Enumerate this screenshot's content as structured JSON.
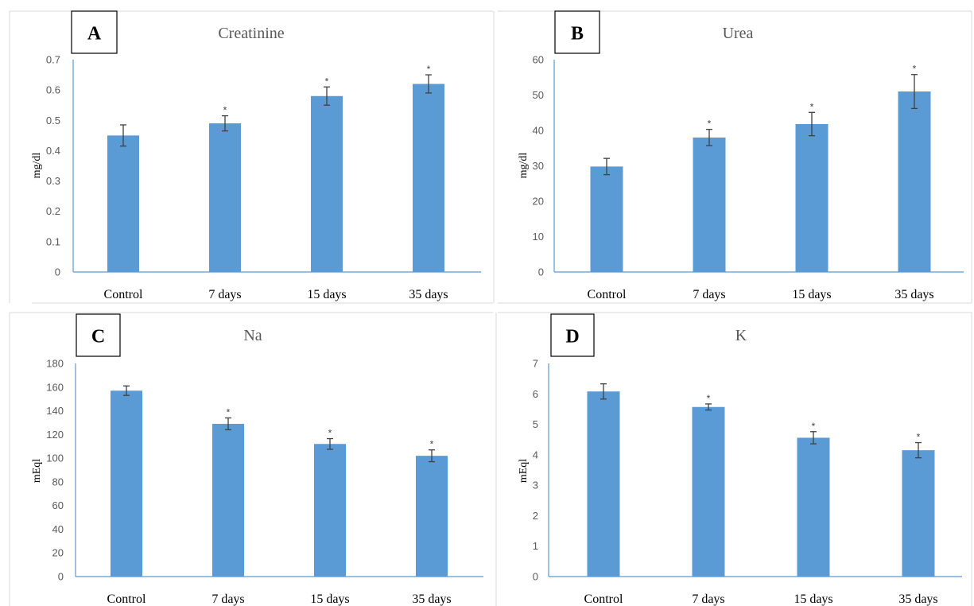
{
  "colors": {
    "bar": "#5b9bd5",
    "axis": "#5b9bd5",
    "error_bar": "#404040",
    "frame": "#d9d9d9"
  },
  "chart_data": [
    {
      "panel": "A",
      "type": "bar",
      "title": "Creatinine",
      "ylabel": "mg/dl",
      "xlabel": "",
      "categories": [
        "Control",
        "7 days",
        "15 days",
        "35 days"
      ],
      "values": [
        0.45,
        0.49,
        0.58,
        0.62
      ],
      "errors": [
        0.035,
        0.025,
        0.03,
        0.03
      ],
      "significance": [
        "",
        "*",
        "*",
        "*"
      ],
      "ylim": [
        0,
        0.7
      ],
      "yticks": [
        "0",
        "0.1",
        "0.2",
        "0.3",
        "0.4",
        "0.5",
        "0.6",
        "0.7"
      ],
      "grid": false
    },
    {
      "panel": "B",
      "type": "bar",
      "title": "Urea",
      "ylabel": "mg/dl",
      "xlabel": "",
      "categories": [
        "Control",
        "7 days",
        "15 days",
        "35 days"
      ],
      "values": [
        29.8,
        38,
        41.8,
        51
      ],
      "errors": [
        2.3,
        2.3,
        3.3,
        4.8
      ],
      "significance": [
        "",
        "*",
        "*",
        "*"
      ],
      "ylim": [
        0,
        60
      ],
      "yticks": [
        "0",
        "10",
        "20",
        "30",
        "40",
        "50",
        "60"
      ],
      "grid": false
    },
    {
      "panel": "C",
      "type": "bar",
      "title": "Na",
      "ylabel": "mEql",
      "xlabel": "",
      "categories": [
        "Control",
        "7 days",
        "15 days",
        "35 days"
      ],
      "values": [
        157,
        129,
        112,
        102
      ],
      "errors": [
        4,
        5,
        4.5,
        5
      ],
      "significance": [
        "",
        "*",
        "*",
        "*"
      ],
      "ylim": [
        0,
        180
      ],
      "yticks": [
        "0",
        "20",
        "40",
        "60",
        "80",
        "100",
        "120",
        "140",
        "160",
        "180"
      ],
      "grid": false
    },
    {
      "panel": "D",
      "type": "bar",
      "title": "K",
      "ylabel": "mEql",
      "xlabel": "",
      "categories": [
        "Control",
        "7 days",
        "15 days",
        "35 days"
      ],
      "values": [
        6.08,
        5.57,
        4.56,
        4.15
      ],
      "errors": [
        0.25,
        0.1,
        0.2,
        0.25
      ],
      "significance": [
        "",
        "*",
        "*",
        "*"
      ],
      "ylim": [
        0,
        7
      ],
      "yticks": [
        "0",
        "1",
        "2",
        "3",
        "4",
        "5",
        "6",
        "7"
      ],
      "grid": false
    }
  ]
}
